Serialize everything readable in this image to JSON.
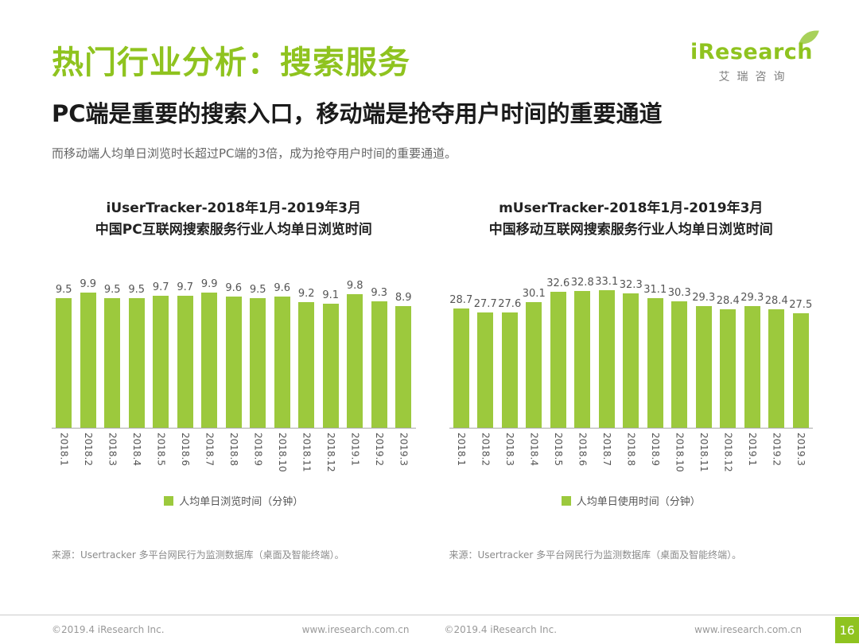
{
  "header": {
    "title": "热门行业分析：搜索服务",
    "subtitle": "PC端是重要的搜索入口，移动端是抢夺用户时间的重要通道",
    "description": "而移动端人均单日浏览时长超过PC端的3倍，成为抢夺用户时间的重要通道。",
    "logo": {
      "text": "iResearch",
      "cn": "艾瑞咨询"
    }
  },
  "chart_data": [
    {
      "type": "bar",
      "title_line1": "iUserTracker-2018年1月-2019年3月",
      "title_line2": "中国PC互联网搜索服务行业人均单日浏览时间",
      "categories": [
        "2018.1",
        "2018.2",
        "2018.3",
        "2018.4",
        "2018.5",
        "2018.6",
        "2018.7",
        "2018.8",
        "2018.9",
        "2018.10",
        "2018.11",
        "2018.12",
        "2019.1",
        "2019.2",
        "2019.3"
      ],
      "values": [
        9.5,
        9.9,
        9.5,
        9.5,
        9.7,
        9.7,
        9.9,
        9.6,
        9.5,
        9.6,
        9.2,
        9.1,
        9.8,
        9.3,
        8.9
      ],
      "legend": "人均单日浏览时间（分钟）",
      "xlabel": "",
      "ylabel": "",
      "ylim": [
        0,
        11
      ],
      "grid": false,
      "legend_position": "bottom",
      "bar_color": "#9cc93d",
      "source": "来源：Usertracker 多平台网民行为监测数据库（桌面及智能终端）。"
    },
    {
      "type": "bar",
      "title_line1": "mUserTracker-2018年1月-2019年3月",
      "title_line2": "中国移动互联网搜索服务行业人均单日浏览时间",
      "categories": [
        "2018.1",
        "2018.2",
        "2018.3",
        "2018.4",
        "2018.5",
        "2018.6",
        "2018.7",
        "2018.8",
        "2018.9",
        "2018.10",
        "2018.11",
        "2018.12",
        "2019.1",
        "2019.2",
        "2019.3"
      ],
      "values": [
        28.7,
        27.7,
        27.6,
        30.1,
        32.6,
        32.8,
        33.1,
        32.3,
        31.1,
        30.3,
        29.3,
        28.4,
        29.3,
        28.4,
        27.5
      ],
      "legend": "人均单日使用时间（分钟）",
      "xlabel": "",
      "ylabel": "",
      "ylim": [
        0,
        36
      ],
      "grid": false,
      "legend_position": "bottom",
      "bar_color": "#9cc93d",
      "source": "来源：Usertracker 多平台网民行为监测数据库（桌面及智能终端）。"
    }
  ],
  "footer": {
    "copyright_left": "©2019.4 iResearch Inc.",
    "url_left": "www.iresearch.com.cn",
    "copyright_right": "©2019.4 iResearch Inc.",
    "url_right": "www.iresearch.com.cn",
    "page": "16"
  },
  "colors": {
    "accent": "#8fc31f",
    "bar": "#9cc93d",
    "text_dark": "#1a1a1a",
    "text_gray": "#666666",
    "footer_gray": "#999999"
  }
}
